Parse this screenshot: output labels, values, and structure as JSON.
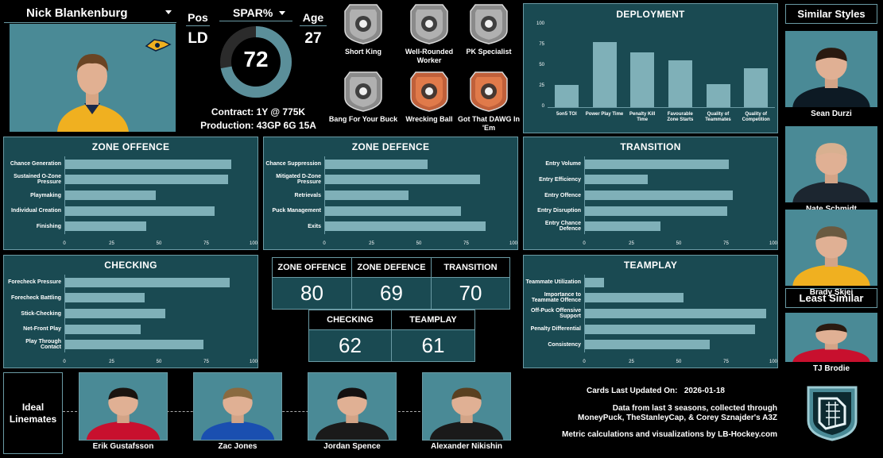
{
  "player": {
    "name": "Nick Blankenburg",
    "pos_label": "Pos",
    "pos": "LD",
    "spar_label": "SPAR%",
    "spar_value": "72",
    "spar_fraction": 0.72,
    "age_label": "Age",
    "age": "27",
    "contract_label": "Contract:",
    "contract_value": "1Y @ 775K",
    "production_label": "Production:",
    "production_value": "43GP 6G 15A"
  },
  "badges": [
    {
      "label": "Short King",
      "icon": "crown-person-icon",
      "style": "gray"
    },
    {
      "label": "Well-Rounded Worker",
      "icon": "scales-icon",
      "style": "gray"
    },
    {
      "label": "PK Specialist",
      "icon": "shield-minus-icon",
      "style": "gray"
    },
    {
      "label": "Bang For Your Buck",
      "icon": "money-bag-icon",
      "style": "gray"
    },
    {
      "label": "Wrecking Ball",
      "icon": "wrecking-ball-icon",
      "style": "copper"
    },
    {
      "label": "Got That DAWG In 'Em",
      "icon": "dog-icon",
      "style": "copper"
    }
  ],
  "deployment": {
    "title": "DEPLOYMENT",
    "chart_data": {
      "type": "bar",
      "categories": [
        "5on5 TOI",
        "Power Play Time",
        "Penalty Kill Time",
        "Favourable Zone Starts",
        "Quality of Teammates",
        "Quality of Competition"
      ],
      "values": [
        27,
        79,
        66,
        57,
        28,
        47
      ],
      "ylim": [
        0,
        100
      ],
      "yticks": [
        "0",
        "25",
        "50",
        "75",
        "100"
      ]
    }
  },
  "similar": {
    "title": "Similar Styles",
    "players": [
      {
        "name": "Sean Durzi",
        "jersey": "#0d1a24",
        "hair": "#2a1a10"
      },
      {
        "name": "Nate Schmidt",
        "jersey": "#1c2630",
        "hair": "#d8b090"
      },
      {
        "name": "Brady Skjei",
        "jersey": "#f0b020",
        "hair": "#6a5a40"
      }
    ],
    "least_title": "Least Similar",
    "least": {
      "name": "TJ Brodie",
      "jersey": "#c8102e",
      "hair": "#2a1a10"
    }
  },
  "zone_offence": {
    "title": "ZONE OFFENCE",
    "chart_data": {
      "type": "bar",
      "orientation": "horizontal",
      "categories": [
        "Chance Generation",
        "Sustained O-Zone Pressure",
        "Playmaking",
        "Individual Creation",
        "Finishing"
      ],
      "values": [
        88,
        86,
        48,
        79,
        43
      ],
      "xlim": [
        0,
        100
      ],
      "xticks": [
        "0",
        "25",
        "50",
        "75",
        "100"
      ]
    }
  },
  "zone_defence": {
    "title": "ZONE DEFENCE",
    "chart_data": {
      "type": "bar",
      "orientation": "horizontal",
      "categories": [
        "Chance Suppression",
        "Mitigated D-Zone Pressure",
        "Retrievals",
        "Puck Management",
        "Exits"
      ],
      "values": [
        54,
        82,
        44,
        72,
        85
      ],
      "xlim": [
        0,
        100
      ],
      "xticks": [
        "0",
        "25",
        "50",
        "75",
        "100"
      ]
    }
  },
  "transition": {
    "title": "TRANSITION",
    "chart_data": {
      "type": "bar",
      "orientation": "horizontal",
      "categories": [
        "Entry Volume",
        "Entry Efficiency",
        "Entry Offence",
        "Entry Disruption",
        "Entry Chance Defence"
      ],
      "values": [
        76,
        33,
        78,
        75,
        40
      ],
      "xlim": [
        0,
        100
      ],
      "xticks": [
        "0",
        "25",
        "50",
        "75",
        "100"
      ]
    }
  },
  "checking": {
    "title": "CHECKING",
    "chart_data": {
      "type": "bar",
      "orientation": "horizontal",
      "categories": [
        "Forecheck Pressure",
        "Forecheck Battling",
        "Stick-Checking",
        "Net-Front Play",
        "Play Through Contact"
      ],
      "values": [
        87,
        42,
        53,
        40,
        73
      ],
      "xlim": [
        0,
        100
      ],
      "xticks": [
        "0",
        "25",
        "50",
        "75",
        "100"
      ]
    }
  },
  "teamplay": {
    "title": "TEAMPLAY",
    "chart_data": {
      "type": "bar",
      "orientation": "horizontal",
      "categories": [
        "Teammate Utilization",
        "Importance to Teammate Offence",
        "Off-Puck Offensive Support",
        "Penalty Differential",
        "Consistency"
      ],
      "values": [
        10,
        52,
        96,
        90,
        66
      ],
      "xlim": [
        0,
        100
      ],
      "xticks": [
        "0",
        "25",
        "50",
        "75",
        "100"
      ]
    }
  },
  "scores": {
    "zone_offence_label": "ZONE OFFENCE",
    "zone_offence": "80",
    "zone_defence_label": "ZONE DEFENCE",
    "zone_defence": "69",
    "transition_label": "TRANSITION",
    "transition": "70",
    "checking_label": "CHECKING",
    "checking": "62",
    "teamplay_label": "TEAMPLAY",
    "teamplay": "61"
  },
  "linemates": {
    "title": "Ideal Linemates",
    "players": [
      {
        "name": "Erik Gustafsson",
        "jersey": "#c8102e",
        "hair": "#1a1410"
      },
      {
        "name": "Zac Jones",
        "jersey": "#1a4fb0",
        "hair": "#8a6a40"
      },
      {
        "name": "Jordan Spence",
        "jersey": "#1a1a1a",
        "hair": "#141010"
      },
      {
        "name": "Alexander Nikishin",
        "jersey": "#1a1a1a",
        "hair": "#5a4020"
      }
    ]
  },
  "footer": {
    "updated_label": "Cards Last Updated On:",
    "updated_value": "2026-01-18",
    "source_line1": "Data from last 3 seasons, collected through",
    "source_line2": "MoneyPuck, TheStanleyCap, & Corey Sznajder's A3Z",
    "credit": "Metric calculations and visualizations by LB-Hockey.com"
  },
  "colors": {
    "panel": "#1a4a52",
    "panel_border": "#6a9aa4",
    "bar": "#7fb0b8",
    "photo_bg": "#4a8a96",
    "gauge_fill": "#5b8f9a",
    "gauge_track": "#2b2b2b",
    "copper": "#c0603a"
  }
}
